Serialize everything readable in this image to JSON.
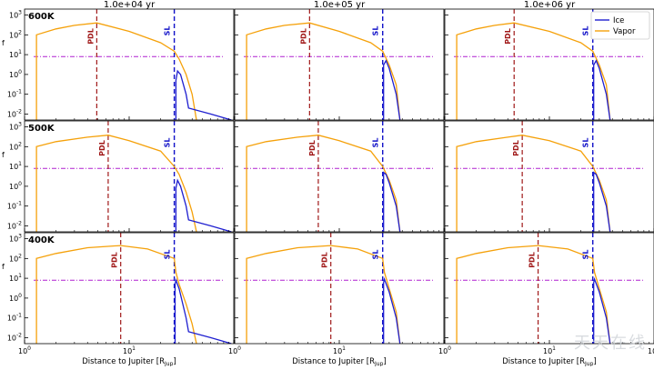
{
  "chart_data": {
    "type": "line",
    "layout": "3x3 grid",
    "col_titles": [
      "1.0e+04 yr",
      "1.0e+05 yr",
      "1.0e+06 yr"
    ],
    "row_labels": [
      "600K",
      "500K",
      "400K"
    ],
    "xlabel": "Distance to Jupiter [R_Jup]",
    "xlabel_main": "Distance to Jupiter [R",
    "xlabel_sub": "Jup",
    "xlabel_end": "]",
    "xscale": "log",
    "yscale": "log",
    "xlim": [
      1,
      100
    ],
    "ylim": [
      0.005,
      2000
    ],
    "ylabel_stub": "f",
    "x_ticks": [
      {
        "v": 1,
        "label": "10",
        "exp": "0"
      },
      {
        "v": 10,
        "label": "10",
        "exp": "1"
      },
      {
        "v": 100,
        "label": "10",
        "exp": "2"
      }
    ],
    "y_ticks": [
      {
        "v": 0.01,
        "exp": "-2"
      },
      {
        "v": 0.1,
        "exp": "-1"
      },
      {
        "v": 1,
        "exp": "0"
      },
      {
        "v": 10,
        "exp": "1"
      },
      {
        "v": 100,
        "exp": "2"
      },
      {
        "v": 1000,
        "exp": "3"
      }
    ],
    "legend": {
      "placement": "top-right",
      "entries": [
        "Ice",
        "Vapor"
      ]
    },
    "colors": {
      "ice": "#1f1fd0",
      "vapor": "#f5a10a",
      "pdl": "#a01818",
      "sl": "#1010c8",
      "ref": "#b020d0"
    },
    "pdl_label": "PDL",
    "sl_label": "SL",
    "reference_level": 8,
    "panels": [
      {
        "row": 0,
        "col": 0,
        "pdl": 4.9,
        "sl": 27,
        "vapor": [
          [
            1.3,
            0.005
          ],
          [
            1.3,
            100
          ],
          [
            2,
            200
          ],
          [
            3,
            300
          ],
          [
            4.9,
            400
          ],
          [
            10,
            150
          ],
          [
            20,
            40
          ],
          [
            27,
            15
          ],
          [
            30,
            6
          ],
          [
            35,
            1
          ],
          [
            40,
            0.1
          ],
          [
            44,
            0.005
          ]
        ],
        "ice": [
          [
            28,
            0.005
          ],
          [
            28,
            0.5
          ],
          [
            29,
            1.5
          ],
          [
            31,
            1
          ],
          [
            35,
            0.1
          ],
          [
            37,
            0.02
          ],
          [
            60,
            0.01
          ],
          [
            95,
            0.005
          ]
        ]
      },
      {
        "row": 0,
        "col": 1,
        "pdl": 5.2,
        "sl": 26,
        "vapor": [
          [
            1.3,
            0.005
          ],
          [
            1.3,
            100
          ],
          [
            2,
            200
          ],
          [
            3,
            300
          ],
          [
            5.2,
            400
          ],
          [
            10,
            150
          ],
          [
            20,
            40
          ],
          [
            26,
            15
          ],
          [
            30,
            3
          ],
          [
            35,
            0.3
          ],
          [
            38,
            0.005
          ]
        ],
        "ice": [
          [
            26.5,
            0.005
          ],
          [
            26.5,
            3
          ],
          [
            28,
            5
          ],
          [
            30,
            2
          ],
          [
            35,
            0.1
          ],
          [
            38,
            0.005
          ]
        ]
      },
      {
        "row": 0,
        "col": 2,
        "pdl": 4.6,
        "sl": 26,
        "vapor": [
          [
            1.3,
            0.005
          ],
          [
            1.3,
            100
          ],
          [
            2,
            200
          ],
          [
            3,
            300
          ],
          [
            4.6,
            400
          ],
          [
            10,
            150
          ],
          [
            20,
            40
          ],
          [
            26,
            15
          ],
          [
            30,
            3
          ],
          [
            35,
            0.3
          ],
          [
            38,
            0.005
          ]
        ],
        "ice": [
          [
            26.5,
            0.005
          ],
          [
            26.5,
            3
          ],
          [
            28,
            5
          ],
          [
            30,
            2
          ],
          [
            35,
            0.1
          ],
          [
            38,
            0.005
          ]
        ]
      },
      {
        "row": 1,
        "col": 0,
        "pdl": 6.3,
        "sl": 27,
        "vapor": [
          [
            1.3,
            0.005
          ],
          [
            1.3,
            100
          ],
          [
            2,
            180
          ],
          [
            4,
            300
          ],
          [
            6.3,
            380
          ],
          [
            10,
            200
          ],
          [
            20,
            60
          ],
          [
            27,
            10
          ],
          [
            30,
            4
          ],
          [
            35,
            0.5
          ],
          [
            40,
            0.05
          ],
          [
            44,
            0.005
          ]
        ],
        "ice": [
          [
            28,
            0.005
          ],
          [
            28,
            0.8
          ],
          [
            29,
            2
          ],
          [
            31,
            1
          ],
          [
            35,
            0.1
          ],
          [
            37,
            0.02
          ],
          [
            60,
            0.01
          ],
          [
            95,
            0.005
          ]
        ]
      },
      {
        "row": 1,
        "col": 1,
        "pdl": 6.3,
        "sl": 26,
        "vapor": [
          [
            1.3,
            0.005
          ],
          [
            1.3,
            100
          ],
          [
            2,
            180
          ],
          [
            4,
            300
          ],
          [
            6.3,
            380
          ],
          [
            10,
            200
          ],
          [
            20,
            60
          ],
          [
            26,
            10
          ],
          [
            30,
            2
          ],
          [
            35,
            0.2
          ],
          [
            38,
            0.005
          ]
        ],
        "ice": [
          [
            26.5,
            0.005
          ],
          [
            26.5,
            5
          ],
          [
            28,
            4
          ],
          [
            30,
            1.5
          ],
          [
            35,
            0.1
          ],
          [
            38,
            0.005
          ]
        ]
      },
      {
        "row": 1,
        "col": 2,
        "pdl": 5.5,
        "sl": 26,
        "vapor": [
          [
            1.3,
            0.005
          ],
          [
            1.3,
            100
          ],
          [
            2,
            180
          ],
          [
            4,
            300
          ],
          [
            5.5,
            380
          ],
          [
            10,
            200
          ],
          [
            20,
            60
          ],
          [
            26,
            10
          ],
          [
            30,
            2
          ],
          [
            35,
            0.2
          ],
          [
            38,
            0.005
          ]
        ],
        "ice": [
          [
            26.5,
            0.005
          ],
          [
            26.5,
            5
          ],
          [
            28,
            4
          ],
          [
            30,
            1.5
          ],
          [
            35,
            0.1
          ],
          [
            38,
            0.005
          ]
        ]
      },
      {
        "row": 2,
        "col": 0,
        "pdl": 8.3,
        "sl": 27,
        "vapor": [
          [
            1.3,
            0.005
          ],
          [
            1.3,
            100
          ],
          [
            2,
            180
          ],
          [
            4,
            350
          ],
          [
            8.3,
            450
          ],
          [
            15,
            300
          ],
          [
            27,
            100
          ],
          [
            28,
            20
          ],
          [
            30,
            5
          ],
          [
            35,
            0.5
          ],
          [
            40,
            0.05
          ],
          [
            44,
            0.005
          ]
        ],
        "ice": [
          [
            27.5,
            0.005
          ],
          [
            27.5,
            5
          ],
          [
            28,
            8
          ],
          [
            30,
            3
          ],
          [
            35,
            0.1
          ],
          [
            37,
            0.02
          ],
          [
            60,
            0.01
          ],
          [
            95,
            0.005
          ]
        ]
      },
      {
        "row": 2,
        "col": 1,
        "pdl": 8.3,
        "sl": 26,
        "vapor": [
          [
            1.3,
            0.005
          ],
          [
            1.3,
            100
          ],
          [
            2,
            180
          ],
          [
            4,
            350
          ],
          [
            8.3,
            450
          ],
          [
            15,
            300
          ],
          [
            26,
            100
          ],
          [
            27,
            20
          ],
          [
            30,
            3
          ],
          [
            35,
            0.2
          ],
          [
            38,
            0.005
          ]
        ],
        "ice": [
          [
            26.5,
            0.005
          ],
          [
            26.5,
            6
          ],
          [
            27,
            9
          ],
          [
            30,
            2
          ],
          [
            35,
            0.1
          ],
          [
            38,
            0.005
          ]
        ]
      },
      {
        "row": 2,
        "col": 2,
        "pdl": 7.8,
        "sl": 26,
        "vapor": [
          [
            1.3,
            0.005
          ],
          [
            1.3,
            100
          ],
          [
            2,
            180
          ],
          [
            4,
            350
          ],
          [
            7.8,
            450
          ],
          [
            15,
            300
          ],
          [
            26,
            100
          ],
          [
            27,
            20
          ],
          [
            30,
            3
          ],
          [
            35,
            0.2
          ],
          [
            38,
            0.005
          ]
        ],
        "ice": [
          [
            26.5,
            0.005
          ],
          [
            26.5,
            6
          ],
          [
            27,
            9
          ],
          [
            30,
            2
          ],
          [
            35,
            0.1
          ],
          [
            38,
            0.005
          ]
        ]
      }
    ]
  },
  "watermark": "天天在线"
}
